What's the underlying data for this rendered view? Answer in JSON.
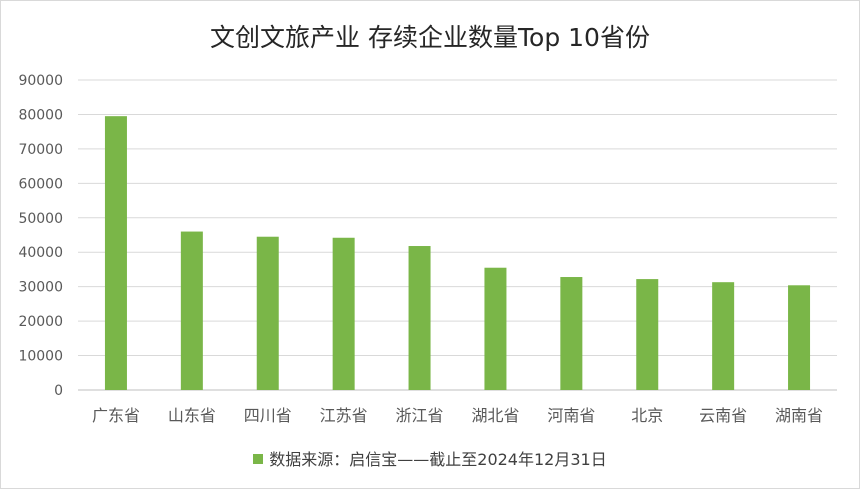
{
  "chart_data": {
    "type": "bar",
    "title": "文创文旅产业 存续企业数量Top 10省份",
    "xlabel": "",
    "ylabel": "",
    "ylim": [
      0,
      90000
    ],
    "yticks": [
      0,
      10000,
      20000,
      30000,
      40000,
      50000,
      60000,
      70000,
      80000,
      90000
    ],
    "ytick_labels": [
      "0",
      "10000",
      "20000",
      "30000",
      "40000",
      "50000",
      "60000",
      "70000",
      "80000",
      "90000"
    ],
    "grid": true,
    "legend_position": "bottom",
    "categories": [
      "广东省",
      "山东省",
      "四川省",
      "江苏省",
      "浙江省",
      "湖北省",
      "河南省",
      "北京",
      "云南省",
      "湖南省"
    ],
    "series": [
      {
        "name": "数据来源：启信宝——截止至2024年12月31日",
        "color": "#7ab648",
        "values": [
          79500,
          46000,
          44500,
          44200,
          41800,
          35500,
          32800,
          32200,
          31300,
          30400
        ]
      }
    ]
  }
}
